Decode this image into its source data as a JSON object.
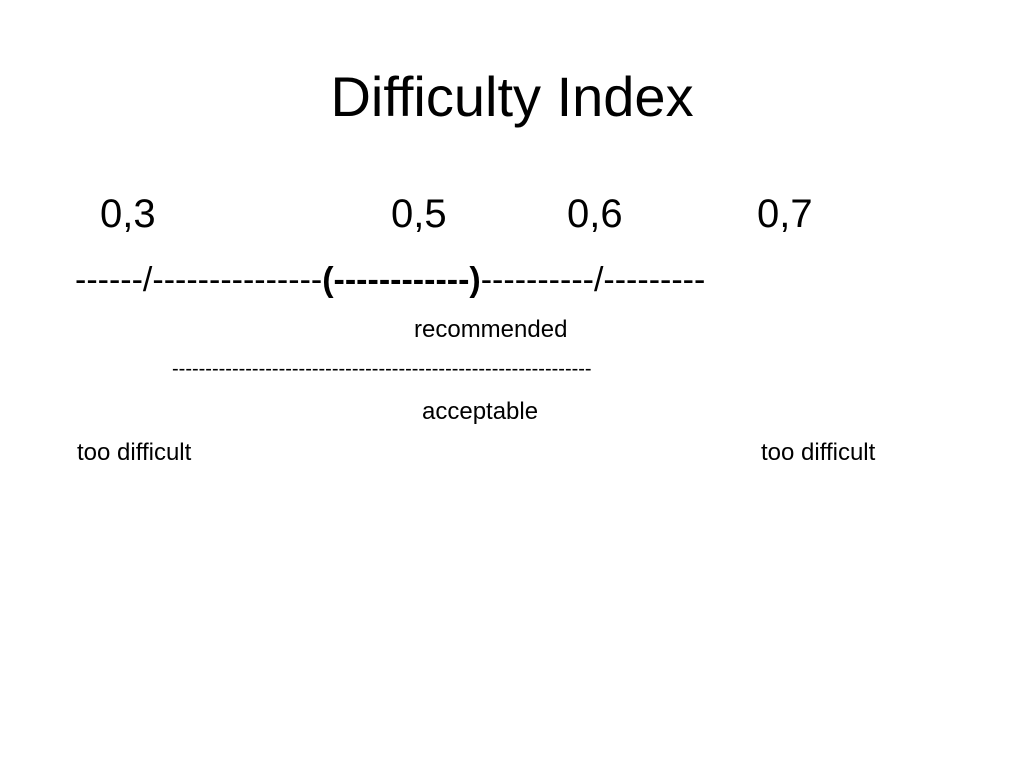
{
  "slide": {
    "title": "Difficulty Index",
    "ticks": [
      "0,3",
      "0,5",
      "0,6",
      "0,7"
    ],
    "scale_line": {
      "left": "------/---------------",
      "recommended_segment": "(------------)",
      "right": "----------/---------"
    },
    "recommended_label": "recommended",
    "acceptable_line": "---------------------------------------------------------------",
    "acceptable_label": "acceptable",
    "left_label": "too difficult",
    "right_label": "too difficult"
  }
}
